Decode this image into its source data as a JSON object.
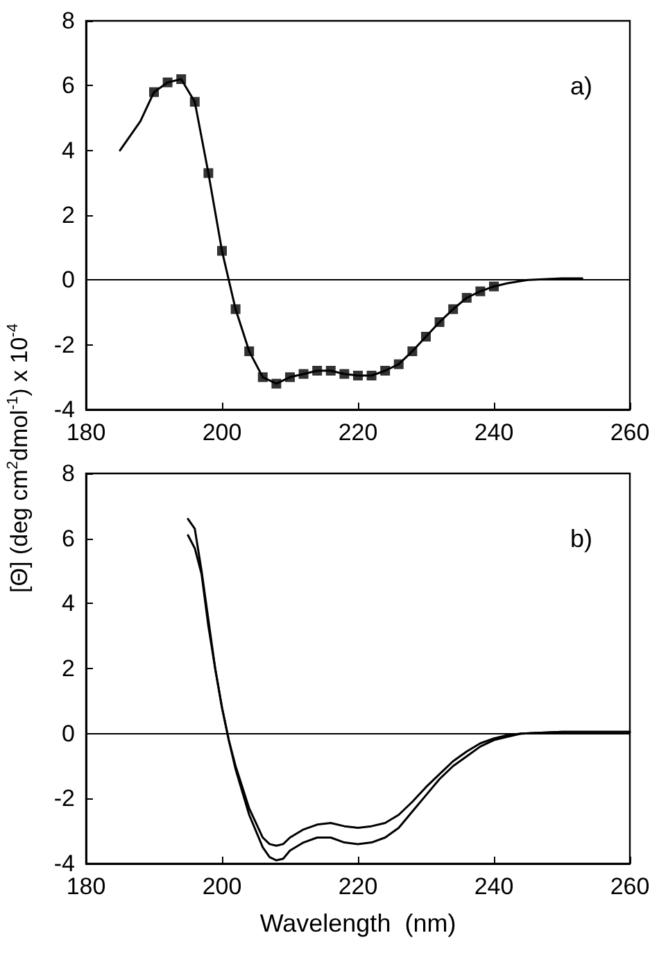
{
  "chart_data": [
    {
      "type": "line",
      "ylabel": "[Θ] (deg cm$^{2}$dmol$^{-1}$) x 10$^{-4}$",
      "annotations": [
        "a)"
      ],
      "xlim": [
        180,
        260
      ],
      "xticks": [
        180,
        200,
        220,
        240,
        260
      ],
      "ylim": [
        -4,
        8
      ],
      "yticks": [
        -4,
        -2,
        0,
        2,
        4,
        6,
        8
      ],
      "grid": false,
      "legend": false,
      "ref_lines": [
        {
          "axis": "y",
          "value": 0,
          "color": "#000000"
        }
      ],
      "series": [
        {
          "color": "#000000",
          "marker": "none",
          "x": [
            185,
            188,
            190,
            192,
            194,
            196,
            198,
            200,
            202,
            204,
            206,
            208,
            210,
            212,
            214,
            216,
            218,
            220,
            222,
            224,
            226,
            228,
            230,
            232,
            234,
            236,
            238,
            240,
            242,
            245,
            250,
            253
          ],
          "values": [
            4.0,
            4.9,
            5.8,
            6.1,
            6.2,
            5.5,
            3.3,
            0.9,
            -0.9,
            -2.2,
            -3.0,
            -3.2,
            -3.0,
            -2.9,
            -2.8,
            -2.8,
            -2.9,
            -2.95,
            -2.95,
            -2.8,
            -2.6,
            -2.2,
            -1.75,
            -1.3,
            -0.9,
            -0.55,
            -0.35,
            -0.2,
            -0.1,
            0.0,
            0.05,
            0.05
          ]
        },
        {
          "type": "scatter",
          "color": "#000000",
          "marker": "square",
          "x": [
            190,
            192,
            194,
            196,
            198,
            200,
            202,
            204,
            206,
            208,
            210,
            212,
            214,
            216,
            218,
            220,
            222,
            224,
            226,
            228,
            230,
            232,
            234,
            236,
            238,
            240
          ],
          "values": [
            5.8,
            6.1,
            6.2,
            5.5,
            3.3,
            0.9,
            -0.9,
            -2.2,
            -3.0,
            -3.2,
            -3.0,
            -2.9,
            -2.8,
            -2.8,
            -2.9,
            -2.95,
            -2.95,
            -2.8,
            -2.6,
            -2.2,
            -1.75,
            -1.3,
            -0.9,
            -0.55,
            -0.35,
            -0.2
          ]
        }
      ]
    },
    {
      "type": "line",
      "xlabel": "Wavelength  (nm)",
      "annotations": [
        "b)"
      ],
      "xlim": [
        180,
        260
      ],
      "xticks": [
        180,
        200,
        220,
        240,
        260
      ],
      "ylim": [
        -4,
        8
      ],
      "yticks": [
        -4,
        -2,
        0,
        2,
        4,
        6,
        8
      ],
      "grid": false,
      "legend": false,
      "marker": "none",
      "ref_lines": [
        {
          "axis": "y",
          "value": 0,
          "color": "#000000"
        }
      ],
      "series": [
        {
          "color": "#000000",
          "x": [
            195,
            196,
            197,
            198,
            199,
            200,
            201,
            202,
            204,
            206,
            207,
            208,
            209,
            210,
            212,
            214,
            216,
            218,
            220,
            222,
            224,
            226,
            228,
            230,
            232,
            234,
            236,
            238,
            240,
            242,
            244,
            250,
            260
          ],
          "values": [
            6.6,
            6.3,
            5.0,
            3.5,
            2.0,
            0.8,
            -0.2,
            -1.1,
            -2.5,
            -3.5,
            -3.8,
            -3.9,
            -3.85,
            -3.6,
            -3.35,
            -3.2,
            -3.2,
            -3.35,
            -3.4,
            -3.35,
            -3.2,
            -2.9,
            -2.4,
            -1.9,
            -1.4,
            -1.0,
            -0.7,
            -0.4,
            -0.2,
            -0.1,
            0,
            0.05,
            0.05
          ]
        },
        {
          "color": "#000000",
          "x": [
            195,
            196,
            197,
            198,
            199,
            200,
            201,
            202,
            204,
            206,
            207,
            208,
            209,
            210,
            212,
            214,
            216,
            218,
            220,
            222,
            224,
            226,
            228,
            230,
            232,
            234,
            236,
            238,
            240,
            242,
            244,
            250,
            260
          ],
          "values": [
            6.1,
            5.7,
            4.9,
            3.3,
            2.0,
            0.8,
            -0.2,
            -1.0,
            -2.3,
            -3.2,
            -3.4,
            -3.45,
            -3.4,
            -3.2,
            -2.95,
            -2.8,
            -2.75,
            -2.85,
            -2.9,
            -2.85,
            -2.75,
            -2.5,
            -2.1,
            -1.65,
            -1.25,
            -0.85,
            -0.55,
            -0.3,
            -0.15,
            -0.05,
            0,
            0.05,
            0.05
          ]
        }
      ]
    }
  ]
}
